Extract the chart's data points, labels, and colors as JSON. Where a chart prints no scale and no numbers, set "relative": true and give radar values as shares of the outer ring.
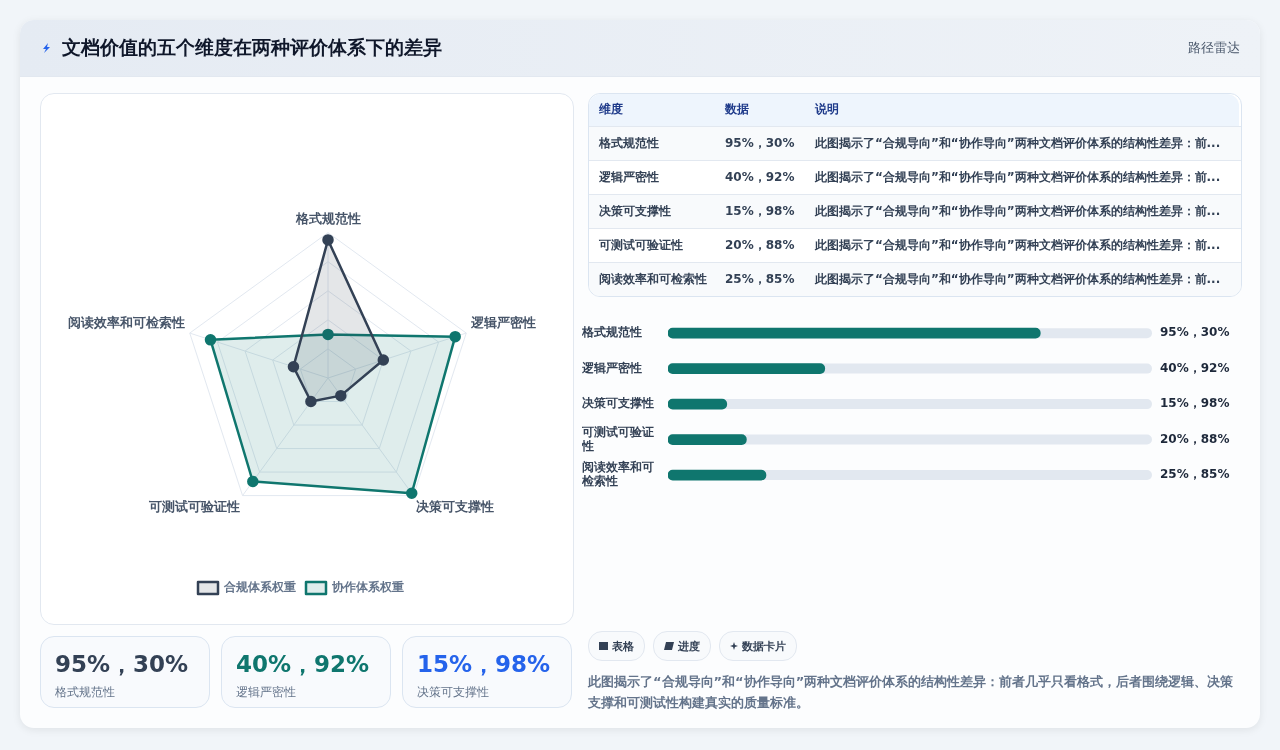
{
  "chart_data": [
    {
      "type": "other",
      "title": "文档价值的五个维度在两种评价体系下的差异",
      "subtitle": "路径雷达"
    },
    {
      "type": "radar",
      "relative": true,
      "categories": [
        "格式规范性",
        "逻辑严密性",
        "决策可支撑性",
        "可测试可验证性",
        "阅读效率和可检索性"
      ],
      "series": [
        {
          "name": "合规体系权重",
          "color": "#334155",
          "values": [
            0.95,
            0.4,
            0.15,
            0.2,
            0.25
          ]
        },
        {
          "name": "协作体系权重",
          "color": "#0f766e",
          "values": [
            0.3,
            0.92,
            0.98,
            0.88,
            0.85
          ]
        }
      ],
      "grid": true,
      "legend": "bottom",
      "marker": "circle"
    },
    {
      "type": "other",
      "annotations": [
        "维度",
        "数据",
        "说明",
        "格式规范性",
        "95%，30%",
        "此图揭示了“合规导向”和“协作导向”两种文档评价体系的结构性差异：前...",
        "逻辑严密性",
        "40%，92%",
        "此图揭示了“合规导向”和“协作导向”两种文档评价体系的结构性差异：前...",
        "决策可支撑性",
        "15%，98%",
        "此图揭示了“合规导向”和“协作导向”两种文档评价体系的结构性差异：前...",
        "可测试可验证性",
        "20%，88%",
        "此图揭示了“合规导向”和“协作导向”两种文档评价体系的结构性差异：前...",
        "阅读效率和可检索性",
        "25%，85%",
        "此图揭示了“合规导向”和“协作导向”两种文档评价体系的结构性差异：前..."
      ]
    },
    {
      "type": "bar",
      "orientation": "horizontal",
      "categories": [
        "格式规范性",
        "逻辑严密性",
        "决策可支撑性",
        "可测试可验证性",
        "阅读效率和可检索性"
      ],
      "values": [
        95,
        40,
        15,
        20,
        25
      ],
      "color": "#0f766e",
      "value_labels": [
        "95%，30%",
        "40%，92%",
        "15%，98%",
        "20%，88%",
        "25%，85%"
      ]
    },
    {
      "type": "other",
      "annotations": [
        "95%，30%",
        "格式规范性",
        "40%，92%",
        "逻辑严密性",
        "15%，98%",
        "决策可支撑性"
      ],
      "colors": [
        "#334155",
        "#0f766e",
        "#2563eb"
      ]
    },
    {
      "type": "other",
      "annotations": [
        "表格",
        "进度",
        "数据卡片",
        "此图揭示了“合规导向”和“协作导向”两种文档评价体系的结构性差异：前者几乎只看格式，后者围绕逻辑、决策支撑和可测试性构建真实的质量标准。"
      ]
    }
  ]
}
